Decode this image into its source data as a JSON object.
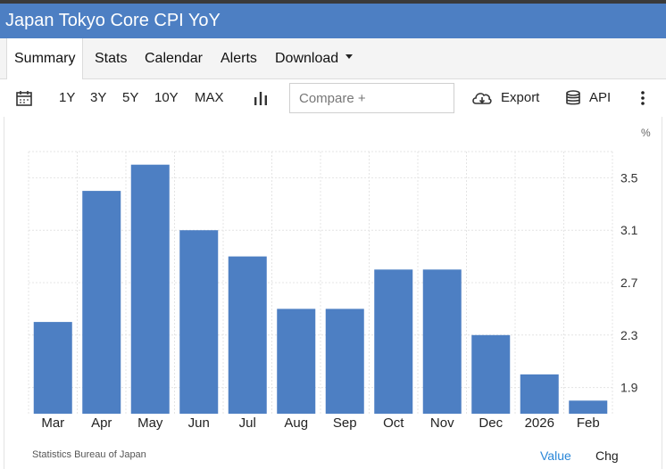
{
  "header": {
    "title": "Japan Tokyo Core CPI YoY"
  },
  "tabs": [
    {
      "label": "Summary"
    },
    {
      "label": "Stats"
    },
    {
      "label": "Calendar"
    },
    {
      "label": "Alerts"
    },
    {
      "label": "Download"
    }
  ],
  "toolbar": {
    "ranges": [
      "1Y",
      "3Y",
      "5Y",
      "10Y",
      "MAX"
    ],
    "compare_placeholder": "Compare +",
    "export_label": "Export",
    "api_label": "API"
  },
  "chart_data": {
    "type": "bar",
    "unit": "%",
    "categories": [
      "Mar",
      "Apr",
      "May",
      "Jun",
      "Jul",
      "Aug",
      "Sep",
      "Oct",
      "Nov",
      "Dec",
      "2026",
      "Feb"
    ],
    "values": [
      2.4,
      3.4,
      3.6,
      3.1,
      2.9,
      2.5,
      2.5,
      2.8,
      2.8,
      2.3,
      2.0,
      1.8
    ],
    "yticks": [
      1.9,
      2.3,
      2.7,
      3.1,
      3.5
    ],
    "ylim": [
      1.7,
      3.7
    ],
    "bar_color": "#4d7fc3",
    "grid": true
  },
  "footer": {
    "source": "Statistics Bureau of Japan",
    "value_label": "Value",
    "chg_label": "Chg"
  },
  "colors": {
    "accent": "#4d7fc3",
    "link": "#2a87d8"
  }
}
